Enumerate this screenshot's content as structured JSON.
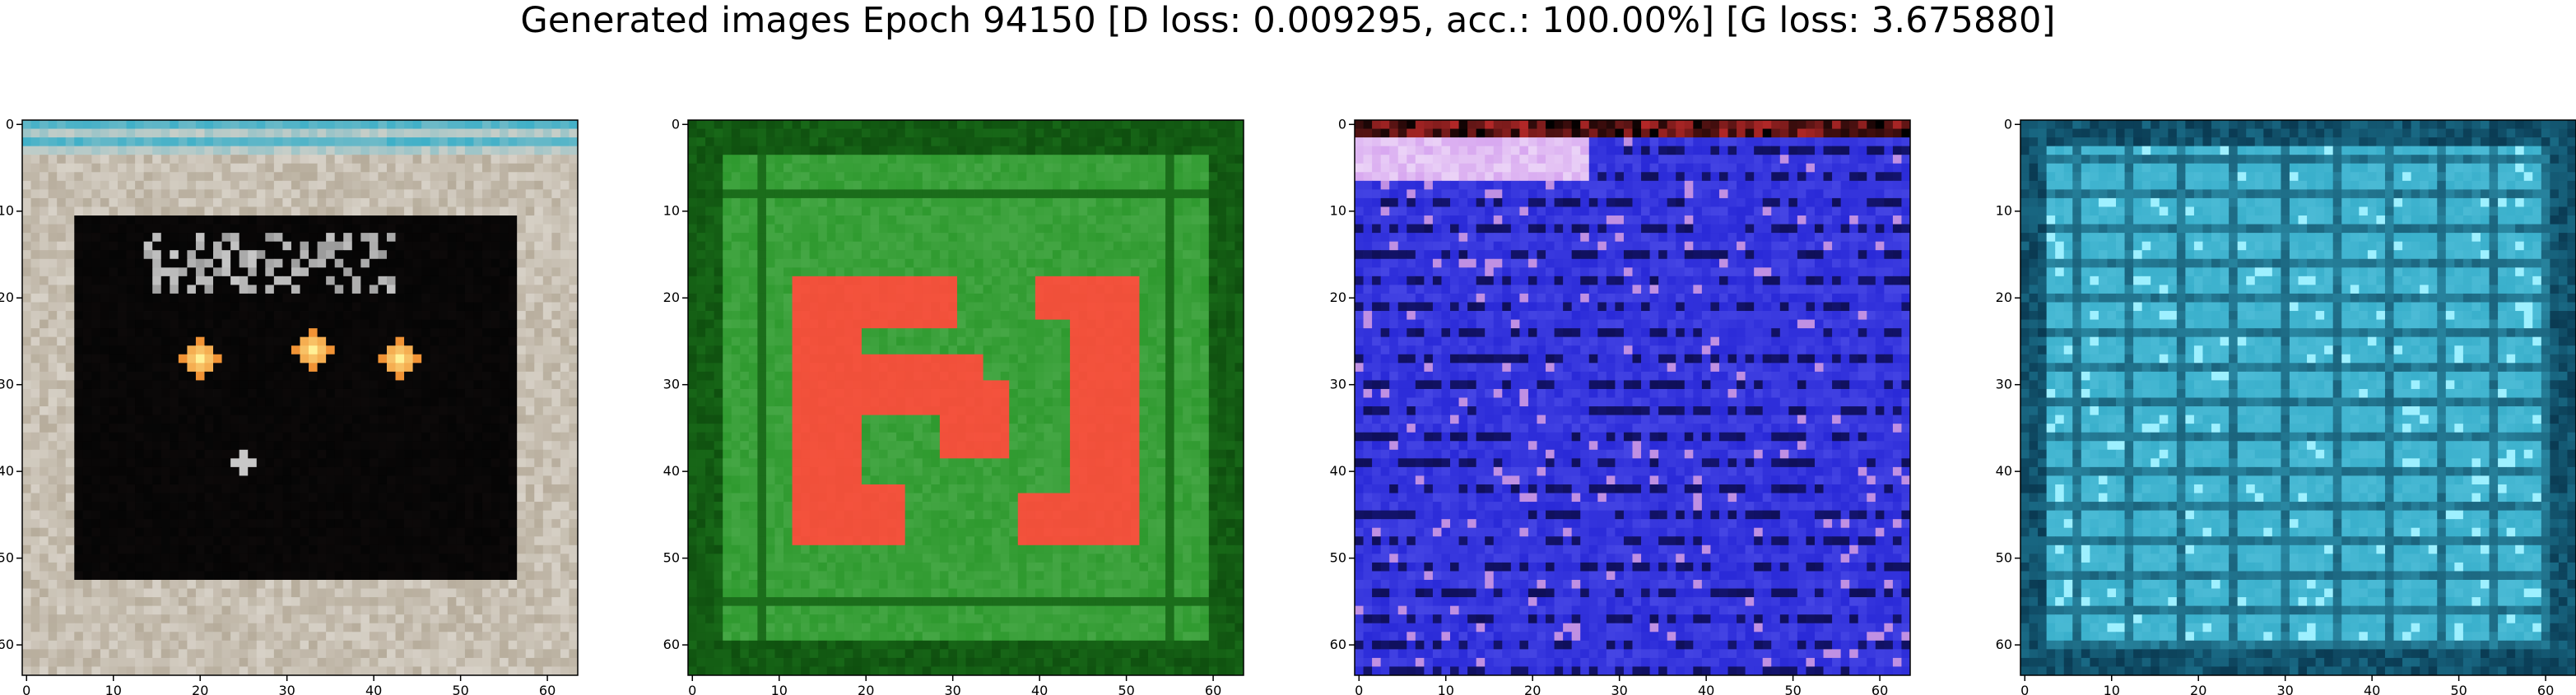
{
  "figure": {
    "title": "Generated images Epoch 94150 [D loss: 0.009295, acc.: 100.00%] [G loss: 3.675880]"
  },
  "axes_ticks": {
    "x": [
      0,
      10,
      20,
      30,
      40,
      50,
      60
    ],
    "y": [
      0,
      10,
      20,
      30,
      40,
      50,
      60
    ],
    "xlim": [
      -0.5,
      63.5
    ],
    "ylim": [
      63.5,
      -0.5
    ]
  },
  "panels": [
    {
      "name": "panel-1",
      "palette": {
        "frame": "#d8d2c8",
        "inner": "#050505",
        "accent": "#f08a2c",
        "stripe": "#3fb0c8",
        "noise": "#a89c88"
      },
      "motif": "dark-square-with-orange-dots"
    },
    {
      "name": "panel-2",
      "palette": {
        "frame": "#1f7a1f",
        "inner": "#2f9a2f",
        "accent": "#f0503a",
        "stripe": "#0f4f0f",
        "noise": "#6fc06f"
      },
      "motif": "green-field-with-red-glyph"
    },
    {
      "name": "panel-3",
      "palette": {
        "frame": "#3a3aee",
        "inner": "#2a2ad8",
        "accent": "#d8a8f0",
        "stripe": "#0a0a40",
        "noise": "#8080ff"
      },
      "motif": "blue-noise-field"
    },
    {
      "name": "panel-4",
      "palette": {
        "frame": "#2a9ab8",
        "inner": "#3ab0cc",
        "accent": "#9ef0ff",
        "stripe": "#0a3a52",
        "noise": "#6cd0e8"
      },
      "motif": "cyan-grid-texture"
    }
  ],
  "chart_data": {
    "type": "image_grid",
    "title": "Generated images Epoch 94150 [D loss: 0.009295, acc.: 100.00%] [G loss: 3.675880]",
    "image_resolution": [
      64,
      64
    ],
    "panels": 4,
    "xlim": [
      -0.5,
      63.5
    ],
    "ylim": [
      63.5,
      -0.5
    ]
  }
}
